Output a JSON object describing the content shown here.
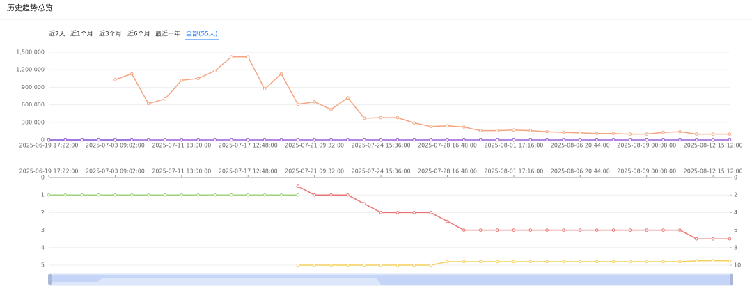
{
  "header": {
    "title": "历史趋势总览"
  },
  "tabs": [
    "近7天",
    "近1个月",
    "近3个月",
    "近6个月",
    "最近一年",
    "全部(55天)"
  ],
  "active_tab": 5,
  "chart_data": [
    {
      "type": "line",
      "step": true,
      "categories": [
        "2025-06-19 17:22:00",
        null,
        null,
        null,
        "2025-07-03 09:02:00",
        null,
        null,
        null,
        "2025-07-11 13:00:00",
        null,
        null,
        null,
        "2025-07-17 12:48:00",
        null,
        null,
        null,
        "2025-07-21 09:32:00",
        null,
        null,
        null,
        "2025-07-24 15:36:00",
        null,
        null,
        null,
        "2025-07-28 16:48:00",
        null,
        null,
        null,
        "2025-08-01 17:16:00",
        null,
        null,
        null,
        "2025-08-06 20:44:00",
        null,
        null,
        null,
        "2025-08-09 00:08:00",
        null,
        null,
        null,
        "2025-08-12 15:12:00",
        null
      ],
      "ylim": [
        0,
        1500000
      ],
      "yticks": [
        0,
        {
          "value": 300000,
          "label": "300,000"
        },
        {
          "value": 600000,
          "label": "600,000"
        },
        {
          "value": 900000,
          "label": "900,000"
        },
        {
          "value": 1200000,
          "label": "1,200,000"
        },
        {
          "value": 1500000,
          "label": "1,500,000"
        }
      ],
      "grid": true,
      "x_labels": "bottom",
      "series": [
        {
          "color": "#5b8ff9",
          "values": [
            0,
            0,
            0,
            0,
            0,
            0,
            null,
            null,
            null,
            null,
            null,
            null,
            null,
            null,
            null,
            null,
            null,
            null,
            null,
            null,
            null,
            null,
            null,
            null,
            null,
            null,
            null,
            null,
            null,
            null,
            null,
            null,
            null,
            null,
            null,
            null,
            null,
            null,
            null,
            null,
            null,
            null
          ]
        },
        {
          "color": "#9a60d8",
          "values": [
            0,
            0,
            0,
            0,
            0,
            0,
            0,
            0,
            0,
            0,
            0,
            0,
            0,
            0,
            0,
            0,
            0,
            0,
            0,
            0,
            0,
            0,
            0,
            0,
            0,
            0,
            0,
            0,
            0,
            0,
            0,
            0,
            0,
            0,
            0,
            0,
            0,
            0,
            0,
            0,
            0,
            0
          ]
        },
        {
          "color": "#f4a47f",
          "values": [
            null,
            null,
            null,
            null,
            1030000,
            1130000,
            620000,
            700000,
            1020000,
            1050000,
            1180000,
            1420000,
            1420000,
            870000,
            1130000,
            610000,
            650000,
            520000,
            720000,
            370000,
            380000,
            380000,
            290000,
            230000,
            240000,
            220000,
            160000,
            160000,
            170000,
            160000,
            140000,
            130000,
            120000,
            110000,
            110000,
            100000,
            100000,
            130000,
            140000,
            100000,
            100000,
            100000
          ]
        }
      ]
    },
    {
      "type": "line",
      "step": true,
      "categories": [
        "2025-06-19 17:22:00",
        null,
        null,
        null,
        "2025-07-03 09:02:00",
        null,
        null,
        null,
        "2025-07-11 13:00:00",
        null,
        null,
        null,
        "2025-07-17 12:48:00",
        null,
        null,
        null,
        "2025-07-21 09:32:00",
        null,
        null,
        null,
        "2025-07-24 15:36:00",
        null,
        null,
        null,
        "2025-07-28 16:48:00",
        null,
        null,
        null,
        "2025-08-01 17:16:00",
        null,
        null,
        null,
        "2025-08-06 20:44:00",
        null,
        null,
        null,
        "2025-08-09 00:08:00",
        null,
        null,
        null,
        "2025-08-12 15:12:00",
        null
      ],
      "ylim": [
        0,
        5
      ],
      "yticks": [
        0,
        1,
        2,
        3,
        4,
        5
      ],
      "y_inverted": true,
      "y2lim": [
        0,
        10
      ],
      "y2ticks": [
        0,
        2,
        4,
        6,
        8,
        10
      ],
      "grid": true,
      "x_labels": "top",
      "series": [
        {
          "color": "#9fd37f",
          "values": [
            1,
            1,
            1,
            1,
            1,
            1,
            1,
            1,
            1,
            1,
            1,
            1,
            1,
            1,
            1,
            1,
            null,
            null,
            null,
            null,
            null,
            null,
            null,
            null,
            null,
            null,
            null,
            null,
            null,
            null,
            null,
            null,
            null,
            null,
            null,
            null,
            null,
            null,
            null,
            null,
            null,
            null
          ]
        },
        {
          "color": "#e97373",
          "values": [
            null,
            null,
            null,
            null,
            null,
            null,
            null,
            null,
            null,
            null,
            null,
            null,
            null,
            null,
            null,
            0.5,
            1,
            1,
            1,
            1.5,
            2,
            2,
            2,
            2,
            2.5,
            3,
            3,
            3,
            3,
            3,
            3,
            3,
            3,
            3,
            3,
            3,
            3,
            3,
            3,
            3.5,
            3.5,
            3.5
          ]
        },
        {
          "color": "#f5d05c",
          "axis": "y2",
          "values": [
            null,
            null,
            null,
            null,
            null,
            null,
            null,
            null,
            null,
            null,
            null,
            null,
            null,
            null,
            null,
            10,
            10,
            10,
            10,
            10,
            10,
            10,
            10,
            10,
            9.6,
            9.6,
            9.6,
            9.6,
            9.6,
            9.6,
            9.6,
            9.6,
            9.6,
            9.6,
            9.6,
            9.6,
            9.6,
            9.6,
            9.6,
            9.5,
            9.5,
            9.5
          ]
        }
      ]
    }
  ]
}
